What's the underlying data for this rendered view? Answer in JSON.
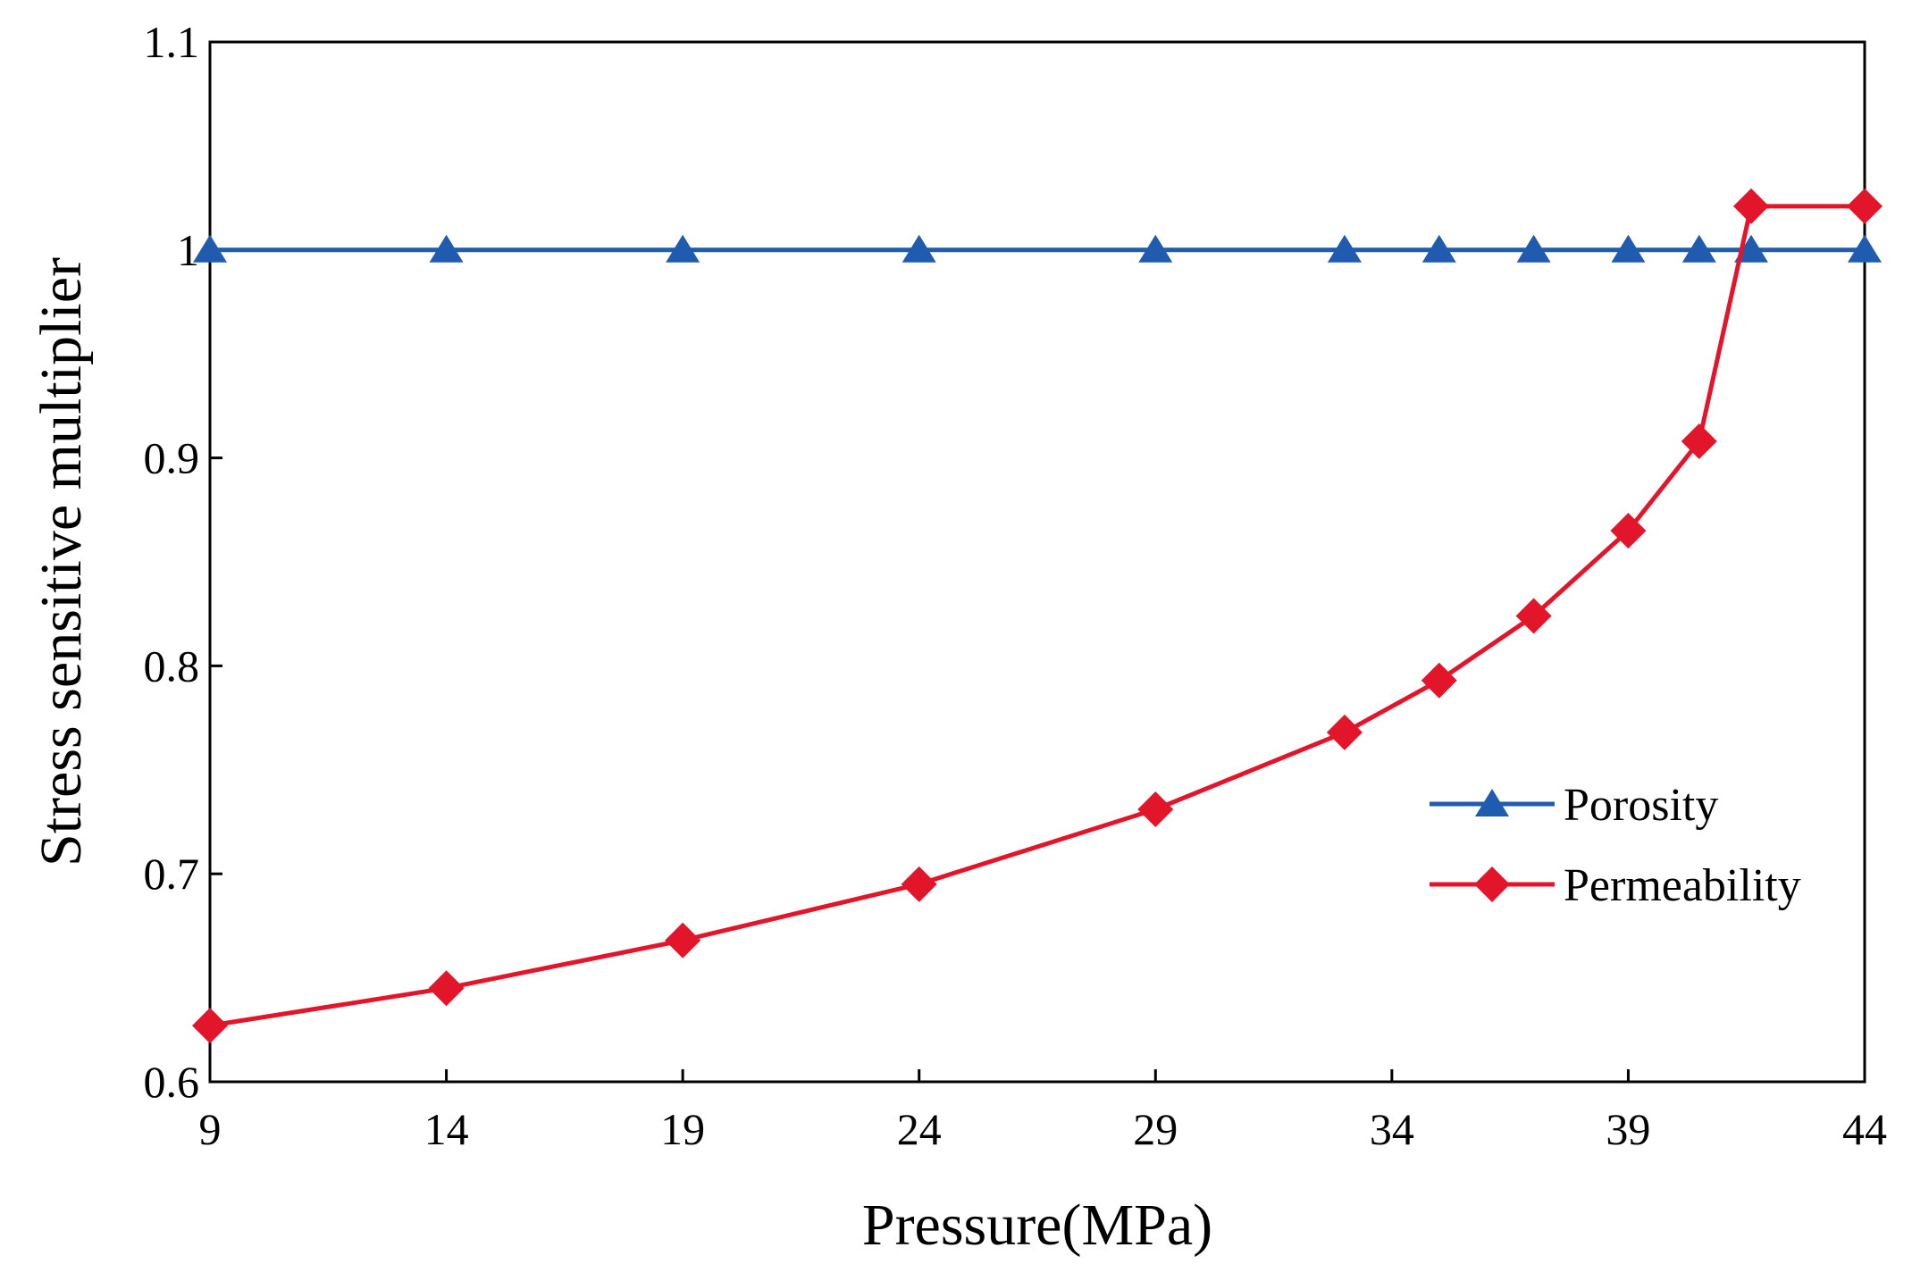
{
  "chart_data": {
    "type": "line",
    "title": "",
    "xlabel": "Pressure(MPa)",
    "ylabel": "Stress sensitive multiplier",
    "xlim": [
      9,
      44
    ],
    "ylim": [
      0.6,
      1.1
    ],
    "xticks": [
      9,
      14,
      19,
      24,
      29,
      34,
      39,
      44
    ],
    "xtick_labels": [
      "9",
      "14",
      "19",
      "24",
      "29",
      "34",
      "39",
      "44"
    ],
    "yticks": [
      0.6,
      0.7,
      0.8,
      0.9,
      1.0,
      1.1
    ],
    "ytick_labels": [
      "0.6",
      "0.7",
      "0.8",
      "0.9",
      "1",
      "1.1"
    ],
    "grid": false,
    "legend_position": "center-right",
    "series": [
      {
        "name": "Porosity",
        "color": "#1f5cb0",
        "marker": "triangle",
        "x": [
          9,
          14,
          19,
          24,
          29,
          33,
          35,
          37,
          39,
          40.5,
          41.6,
          44
        ],
        "y": [
          1.0,
          1.0,
          1.0,
          1.0,
          1.0,
          1.0,
          1.0,
          1.0,
          1.0,
          1.0,
          1.0,
          1.0
        ]
      },
      {
        "name": "Permeability",
        "color": "#e3152b",
        "marker": "diamond",
        "x": [
          9,
          14,
          19,
          24,
          29,
          33,
          35,
          37,
          39,
          40.5,
          41.6,
          44
        ],
        "y": [
          0.627,
          0.645,
          0.668,
          0.695,
          0.731,
          0.768,
          0.793,
          0.824,
          0.865,
          0.908,
          1.021,
          1.021
        ]
      }
    ]
  }
}
